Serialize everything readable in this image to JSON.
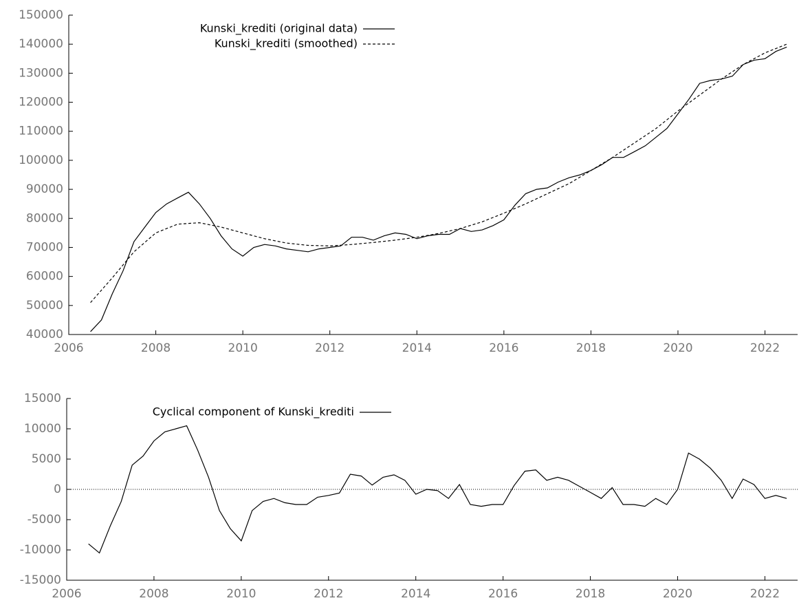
{
  "chart_data": [
    {
      "type": "line",
      "xlim": [
        2006,
        2022.75
      ],
      "xticks": [
        2006,
        2008,
        2010,
        2012,
        2014,
        2016,
        2018,
        2020,
        2022
      ],
      "ylim": [
        40000,
        150000
      ],
      "yticks": [
        40000,
        50000,
        60000,
        70000,
        80000,
        90000,
        100000,
        110000,
        120000,
        130000,
        140000,
        150000
      ],
      "legend": "upper-left",
      "series": [
        {
          "name": "Kunski_krediti (original data)",
          "color": "#000000",
          "dash": "solid",
          "x": [
            2006.5,
            2006.75,
            2007.0,
            2007.25,
            2007.5,
            2007.75,
            2008.0,
            2008.25,
            2008.5,
            2008.75,
            2009.0,
            2009.25,
            2009.5,
            2009.75,
            2010.0,
            2010.25,
            2010.5,
            2010.75,
            2011.0,
            2011.25,
            2011.5,
            2011.75,
            2012.0,
            2012.25,
            2012.5,
            2012.75,
            2013.0,
            2013.25,
            2013.5,
            2013.75,
            2014.0,
            2014.25,
            2014.5,
            2014.75,
            2015.0,
            2015.25,
            2015.5,
            2015.75,
            2016.0,
            2016.25,
            2016.5,
            2016.75,
            2017.0,
            2017.25,
            2017.5,
            2017.75,
            2018.0,
            2018.25,
            2018.5,
            2018.75,
            2019.0,
            2019.25,
            2019.5,
            2019.75,
            2020.0,
            2020.25,
            2020.5,
            2020.75,
            2021.0,
            2021.25,
            2021.5,
            2021.75,
            2022.0,
            2022.25,
            2022.5
          ],
          "values": [
            41000,
            45000,
            54000,
            62000,
            72000,
            77000,
            82000,
            85000,
            87000,
            89000,
            85000,
            80000,
            74000,
            69500,
            67000,
            70000,
            71000,
            70500,
            69500,
            69000,
            68500,
            69500,
            70000,
            70500,
            73500,
            73500,
            72500,
            74000,
            75000,
            74500,
            73000,
            74000,
            74500,
            74500,
            76500,
            75500,
            76000,
            77500,
            79500,
            84500,
            88500,
            90000,
            90500,
            92500,
            94000,
            95000,
            96500,
            98500,
            101000,
            101000,
            103000,
            105000,
            108000,
            111000,
            116000,
            121000,
            126500,
            127500,
            128000,
            129000,
            133000,
            134500,
            135000,
            137500,
            139000
          ]
        },
        {
          "name": "Kunski_krediti (smoothed)",
          "color": "#000000",
          "dash": "dashed",
          "x": [
            2006.5,
            2007.0,
            2007.5,
            2008.0,
            2008.5,
            2009.0,
            2009.5,
            2010.0,
            2010.5,
            2011.0,
            2011.5,
            2012.0,
            2012.5,
            2013.0,
            2013.5,
            2014.0,
            2014.5,
            2015.0,
            2015.5,
            2016.0,
            2016.5,
            2017.0,
            2017.5,
            2018.0,
            2018.5,
            2019.0,
            2019.5,
            2020.0,
            2020.5,
            2021.0,
            2021.5,
            2022.0,
            2022.5
          ],
          "values": [
            51000,
            59500,
            68500,
            75000,
            78000,
            78500,
            77000,
            75000,
            73000,
            71500,
            70700,
            70500,
            71000,
            71700,
            72500,
            73500,
            74800,
            76500,
            78800,
            81800,
            85000,
            88500,
            92000,
            96500,
            101000,
            106000,
            111000,
            117000,
            122500,
            128000,
            133000,
            137000,
            140000
          ]
        }
      ]
    },
    {
      "type": "line",
      "xlim": [
        2006,
        2022.75
      ],
      "xticks": [
        2006,
        2008,
        2010,
        2012,
        2014,
        2016,
        2018,
        2020,
        2022
      ],
      "ylim": [
        -15000,
        15000
      ],
      "yticks": [
        -15000,
        -10000,
        -5000,
        0,
        5000,
        10000,
        15000
      ],
      "legend": "upper-left",
      "zero_line": true,
      "series": [
        {
          "name": "Cyclical component of Kunski_krediti",
          "color": "#000000",
          "dash": "solid",
          "x": [
            2006.5,
            2006.75,
            2007.0,
            2007.25,
            2007.5,
            2007.75,
            2008.0,
            2008.25,
            2008.5,
            2008.75,
            2009.0,
            2009.25,
            2009.5,
            2009.75,
            2010.0,
            2010.25,
            2010.5,
            2010.75,
            2011.0,
            2011.25,
            2011.5,
            2011.75,
            2012.0,
            2012.25,
            2012.5,
            2012.75,
            2013.0,
            2013.25,
            2013.5,
            2013.75,
            2014.0,
            2014.25,
            2014.5,
            2014.75,
            2015.0,
            2015.25,
            2015.5,
            2015.75,
            2016.0,
            2016.25,
            2016.5,
            2016.75,
            2017.0,
            2017.25,
            2017.5,
            2017.75,
            2018.0,
            2018.25,
            2018.5,
            2018.75,
            2019.0,
            2019.25,
            2019.5,
            2019.75,
            2020.0,
            2020.25,
            2020.5,
            2020.75,
            2021.0,
            2021.25,
            2021.5,
            2021.75,
            2022.0,
            2022.25,
            2022.5
          ],
          "values": [
            -9000,
            -10500,
            -6000,
            -2000,
            4000,
            5500,
            8000,
            9500,
            10000,
            10500,
            6500,
            2000,
            -3500,
            -6500,
            -8500,
            -3500,
            -2000,
            -1500,
            -2200,
            -2500,
            -2500,
            -1300,
            -1000,
            -600,
            2500,
            2200,
            700,
            2000,
            2400,
            1500,
            -800,
            0,
            -200,
            -1500,
            800,
            -2500,
            -2800,
            -2500,
            -2500,
            600,
            3000,
            3200,
            1500,
            2000,
            1500,
            500,
            -500,
            -1500,
            300,
            -2500,
            -2500,
            -2800,
            -1500,
            -2500,
            0,
            6000,
            5000,
            3500,
            1500,
            -1500,
            1700,
            800,
            -1500,
            -1000,
            -1500
          ]
        }
      ]
    }
  ]
}
